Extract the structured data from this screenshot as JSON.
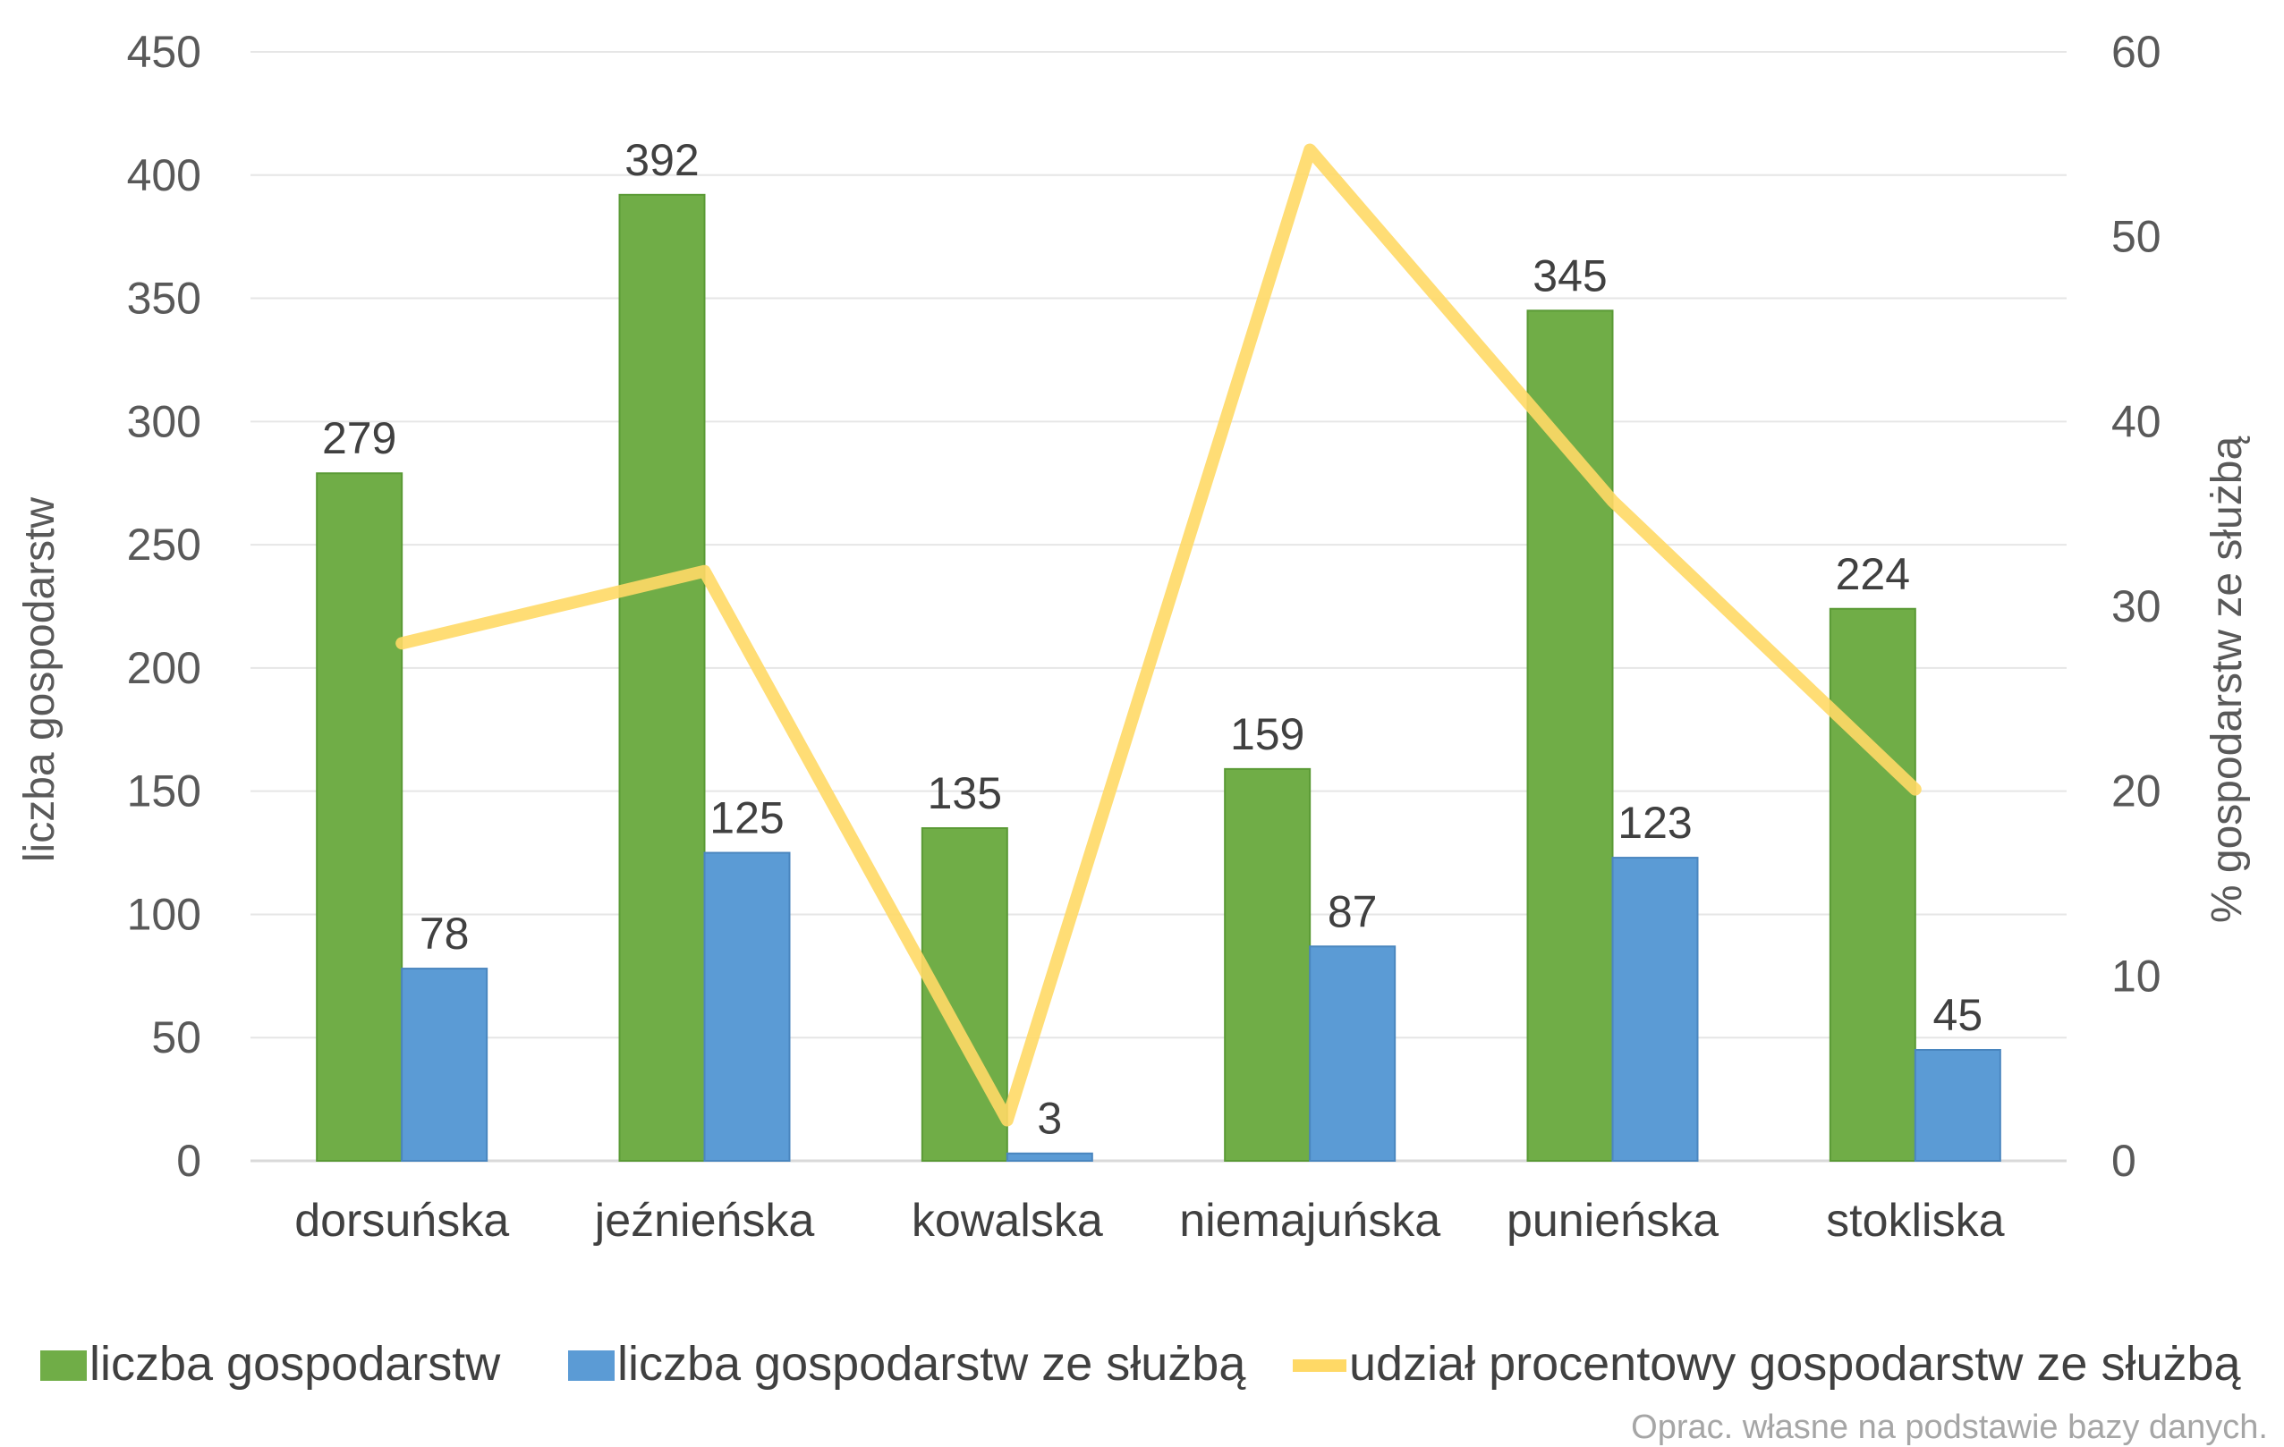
{
  "chart_data": {
    "type": "bar",
    "categories": [
      "dorsuńska",
      "jeźnieńska",
      "kowalska",
      "niemajuńska",
      "punieńska",
      "stokliska"
    ],
    "series": [
      {
        "name": "liczba gospodarstw",
        "type": "bar",
        "axis": "left",
        "color": "#70ad47",
        "values": [
          279,
          392,
          135,
          159,
          345,
          224
        ]
      },
      {
        "name": "liczba gospodarstw ze służbą",
        "type": "bar",
        "axis": "left",
        "color": "#5b9bd5",
        "values": [
          78,
          125,
          3,
          87,
          123,
          45
        ]
      },
      {
        "name": "udział procentowy gospodarstw ze służbą",
        "type": "line",
        "axis": "right",
        "color": "#ffd966",
        "values": [
          28.0,
          31.9,
          2.2,
          54.7,
          35.7,
          20.1
        ]
      }
    ],
    "ylabel": "liczba gospodarstw",
    "y2label": "% gospodarstw ze służbą",
    "ylim": [
      0,
      450
    ],
    "y2lim": [
      0,
      60
    ],
    "yticks": [
      0,
      50,
      100,
      150,
      200,
      250,
      300,
      350,
      400,
      450
    ],
    "y2ticks": [
      0,
      10,
      20,
      30,
      40,
      50,
      60
    ],
    "grid": true,
    "legend_position": "bottom",
    "source_note": "Oprac. własne na podstawie bazy danych."
  }
}
